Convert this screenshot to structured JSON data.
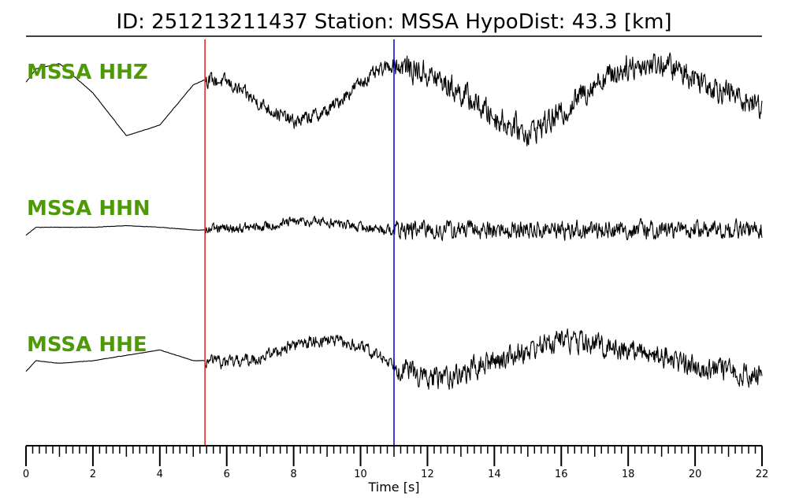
{
  "title": "ID: 251213211437   Station: MSSA   HypoDist:    43.3 [km]",
  "chart_data": {
    "type": "line",
    "xlabel": "Time [s]",
    "xlim": [
      0,
      22
    ],
    "x_ticks": [
      "0",
      "2",
      "4",
      "6",
      "8",
      "10",
      "12",
      "14",
      "16",
      "18",
      "20",
      "22"
    ],
    "minor_tick_step": 0.2,
    "label_color": "#4e9a06",
    "p_pick": {
      "time": 5.35,
      "color": "#e41a1c"
    },
    "s_pick": {
      "time": 11.0,
      "color": "#0000cc"
    },
    "series": [
      {
        "name": "MSSA HHZ",
        "noise": 0.25,
        "envelope": [
          [
            0,
            0.2
          ],
          [
            0.3,
            0.45
          ],
          [
            1,
            0.55
          ],
          [
            2,
            0
          ],
          [
            3,
            -0.8
          ],
          [
            4,
            -0.6
          ],
          [
            5,
            0.15
          ],
          [
            5.35,
            0.25
          ],
          [
            6,
            0.2
          ],
          [
            7,
            -0.2
          ],
          [
            8,
            -0.55
          ],
          [
            9,
            -0.35
          ],
          [
            10,
            0.2
          ],
          [
            11,
            0.55
          ],
          [
            12,
            0.35
          ],
          [
            13,
            0
          ],
          [
            14,
            -0.45
          ],
          [
            15,
            -0.75
          ],
          [
            16,
            -0.4
          ],
          [
            17,
            0.2
          ],
          [
            18,
            0.5
          ],
          [
            19,
            0.55
          ],
          [
            20,
            0.3
          ],
          [
            21,
            0
          ],
          [
            22,
            -0.25
          ]
        ]
      },
      {
        "name": "MSSA HHN",
        "noise": 0.18,
        "envelope": [
          [
            0,
            -0.1
          ],
          [
            0.3,
            0.05
          ],
          [
            1,
            0.05
          ],
          [
            2,
            0.05
          ],
          [
            3,
            0.08
          ],
          [
            4,
            0.05
          ],
          [
            5,
            0
          ],
          [
            5.35,
            0
          ],
          [
            6,
            0.02
          ],
          [
            7,
            0.05
          ],
          [
            8,
            0.15
          ],
          [
            9,
            0.15
          ],
          [
            10,
            0.05
          ],
          [
            11,
            0
          ],
          [
            12,
            0
          ],
          [
            14,
            0
          ],
          [
            16,
            0
          ],
          [
            18,
            0
          ],
          [
            20,
            0
          ],
          [
            22,
            0
          ]
        ]
      },
      {
        "name": "MSSA HHE",
        "noise": 0.22,
        "envelope": [
          [
            0,
            -0.2
          ],
          [
            0.3,
            0
          ],
          [
            1,
            -0.05
          ],
          [
            2,
            0
          ],
          [
            3,
            0.1
          ],
          [
            4,
            0.2
          ],
          [
            5,
            0
          ],
          [
            5.35,
            0
          ],
          [
            6,
            -0.05
          ],
          [
            7,
            0.05
          ],
          [
            8,
            0.3
          ],
          [
            9,
            0.4
          ],
          [
            10,
            0.25
          ],
          [
            11,
            -0.05
          ],
          [
            12,
            -0.35
          ],
          [
            13,
            -0.25
          ],
          [
            14,
            0
          ],
          [
            15,
            0.2
          ],
          [
            16,
            0.4
          ],
          [
            17,
            0.3
          ],
          [
            18,
            0.2
          ],
          [
            19,
            0.1
          ],
          [
            20,
            -0.1
          ],
          [
            21,
            -0.2
          ],
          [
            22,
            -0.3
          ]
        ]
      }
    ]
  }
}
